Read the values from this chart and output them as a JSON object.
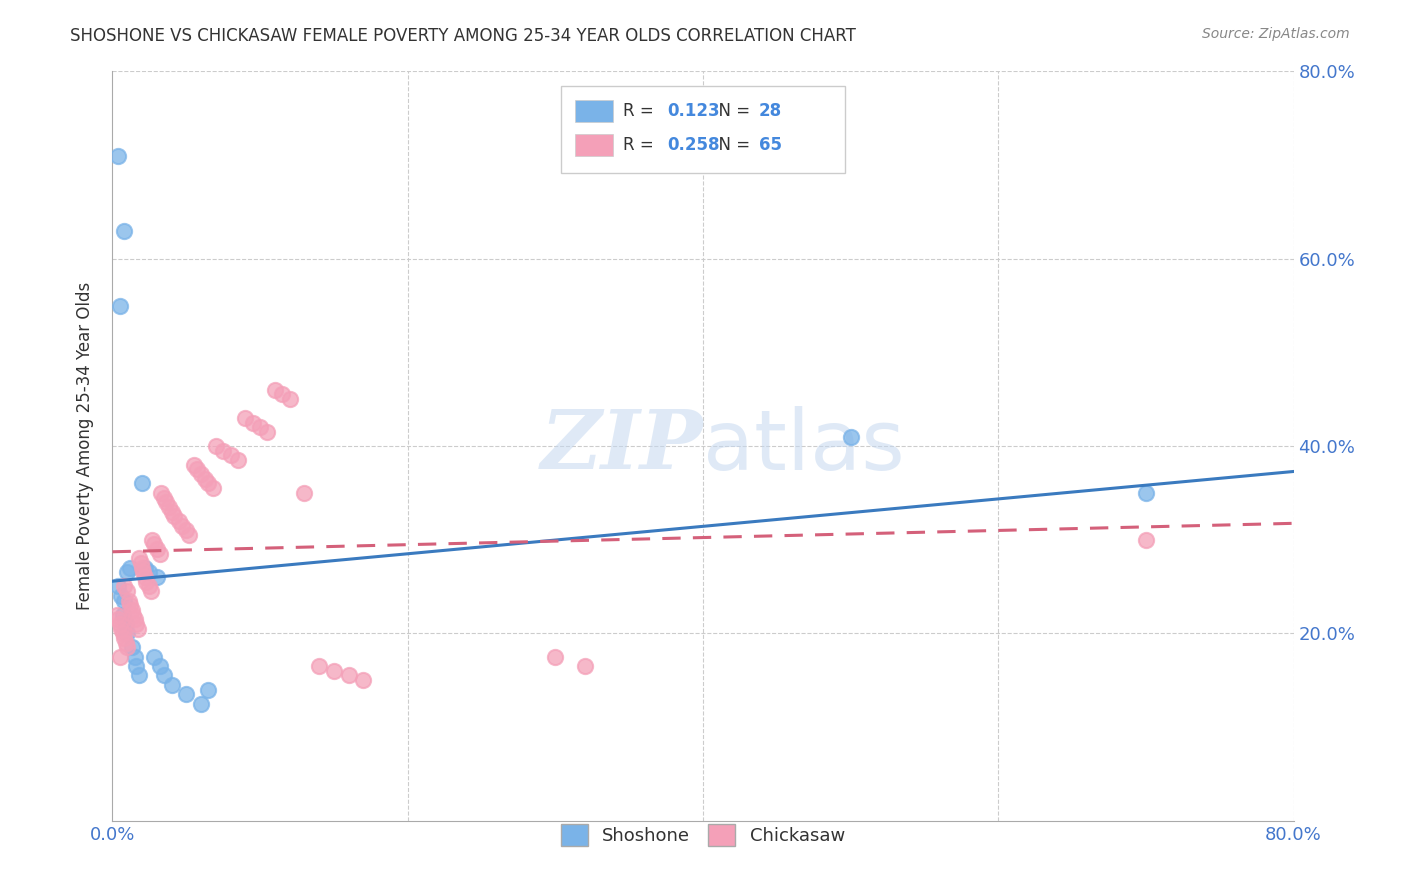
{
  "title": "SHOSHONE VS CHICKASAW FEMALE POVERTY AMONG 25-34 YEAR OLDS CORRELATION CHART",
  "source": "Source: ZipAtlas.com",
  "ylabel": "Female Poverty Among 25-34 Year Olds",
  "xlim": [
    0.0,
    0.8
  ],
  "ylim": [
    0.0,
    0.8
  ],
  "xticks": [
    0.0,
    0.2,
    0.4,
    0.6,
    0.8
  ],
  "yticks": [
    0.2,
    0.4,
    0.6,
    0.8
  ],
  "xticklabels": [
    "0.0%",
    "",
    "",
    "",
    "80.0%"
  ],
  "yticklabels_right": [
    "20.0%",
    "40.0%",
    "60.0%",
    "80.0%"
  ],
  "shoshone_R": 0.123,
  "shoshone_N": 28,
  "chickasaw_R": 0.258,
  "chickasaw_N": 65,
  "shoshone_color": "#7ab3e8",
  "chickasaw_color": "#f4a0b8",
  "shoshone_line_color": "#3a7abf",
  "chickasaw_line_color": "#d4607a",
  "chickasaw_line_dash": true,
  "watermark": "ZIPatlas",
  "watermark_color": "#c8d8f0",
  "shoshone_x": [
    0.004,
    0.004,
    0.005,
    0.006,
    0.007,
    0.008,
    0.009,
    0.01,
    0.01,
    0.012,
    0.013,
    0.015,
    0.016,
    0.018,
    0.02,
    0.022,
    0.025,
    0.028,
    0.03,
    0.032,
    0.035,
    0.04,
    0.05,
    0.06,
    0.065,
    0.5,
    0.7,
    0.008
  ],
  "shoshone_y": [
    0.71,
    0.25,
    0.55,
    0.24,
    0.22,
    0.235,
    0.21,
    0.265,
    0.2,
    0.27,
    0.185,
    0.175,
    0.165,
    0.155,
    0.36,
    0.27,
    0.265,
    0.175,
    0.26,
    0.165,
    0.155,
    0.145,
    0.135,
    0.125,
    0.14,
    0.41,
    0.35,
    0.63
  ],
  "chickasaw_x": [
    0.003,
    0.004,
    0.005,
    0.005,
    0.006,
    0.007,
    0.008,
    0.008,
    0.009,
    0.01,
    0.01,
    0.011,
    0.012,
    0.013,
    0.014,
    0.015,
    0.016,
    0.017,
    0.018,
    0.019,
    0.02,
    0.021,
    0.022,
    0.023,
    0.025,
    0.026,
    0.027,
    0.028,
    0.03,
    0.032,
    0.033,
    0.035,
    0.036,
    0.038,
    0.04,
    0.042,
    0.045,
    0.047,
    0.05,
    0.052,
    0.055,
    0.057,
    0.06,
    0.063,
    0.065,
    0.068,
    0.07,
    0.075,
    0.08,
    0.085,
    0.09,
    0.095,
    0.1,
    0.105,
    0.11,
    0.115,
    0.12,
    0.13,
    0.14,
    0.15,
    0.16,
    0.17,
    0.3,
    0.32,
    0.7
  ],
  "chickasaw_y": [
    0.22,
    0.215,
    0.21,
    0.175,
    0.205,
    0.2,
    0.195,
    0.25,
    0.19,
    0.185,
    0.245,
    0.235,
    0.23,
    0.225,
    0.22,
    0.215,
    0.21,
    0.205,
    0.28,
    0.275,
    0.27,
    0.265,
    0.26,
    0.255,
    0.25,
    0.245,
    0.3,
    0.295,
    0.29,
    0.285,
    0.35,
    0.345,
    0.34,
    0.335,
    0.33,
    0.325,
    0.32,
    0.315,
    0.31,
    0.305,
    0.38,
    0.375,
    0.37,
    0.365,
    0.36,
    0.355,
    0.4,
    0.395,
    0.39,
    0.385,
    0.43,
    0.425,
    0.42,
    0.415,
    0.46,
    0.455,
    0.45,
    0.35,
    0.165,
    0.16,
    0.155,
    0.15,
    0.175,
    0.165,
    0.3
  ]
}
